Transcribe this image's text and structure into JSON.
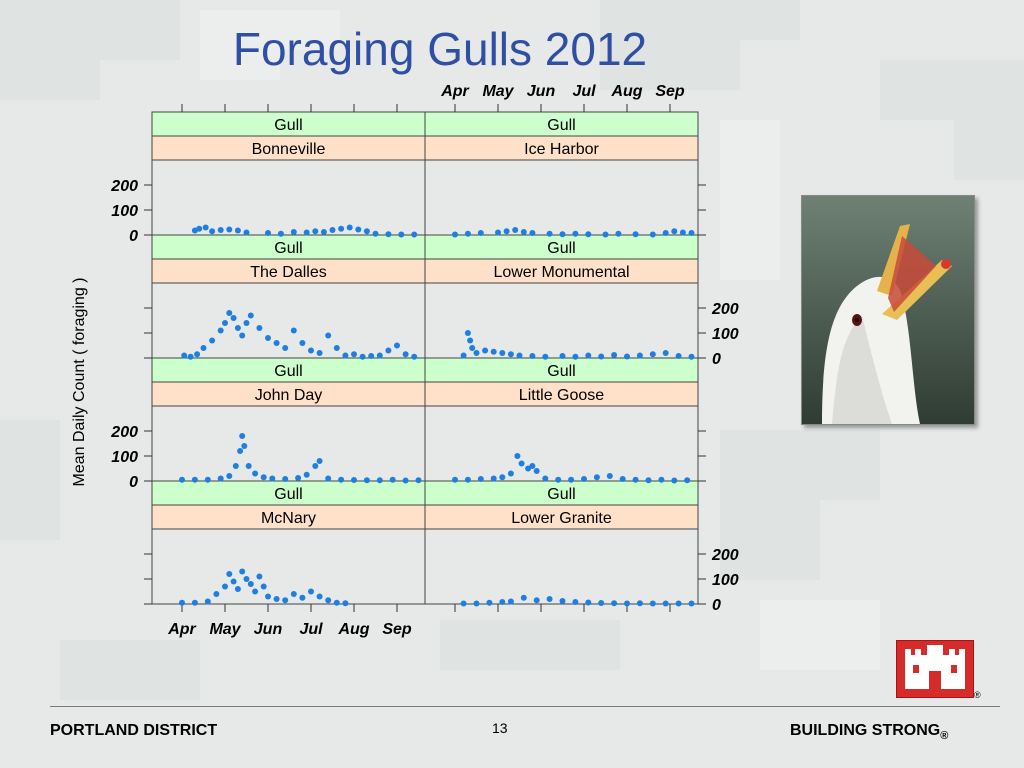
{
  "title": "Foraging Gulls 2012",
  "ylabel": "Mean Daily Count ( foraging )",
  "footer": {
    "left": "PORTLAND DISTRICT",
    "page": "13",
    "right": "BUILDING STRONG",
    "right_mark": "®",
    "logo_mark": "®"
  },
  "colors": {
    "accent": "#2e4fa3",
    "point": "#1e7fe0",
    "strip_top": "#ccffcc",
    "strip_bottom": "#ffe0c8"
  },
  "chart_data": {
    "type": "scatter",
    "x_ticks": [
      "Apr",
      "May",
      "Jun",
      "Jul",
      "Aug",
      "Sep"
    ],
    "y_ticks": [
      0,
      100,
      200
    ],
    "ylim": [
      0,
      300
    ],
    "panels": [
      {
        "species": "Gull",
        "site": "Bonneville",
        "points": [
          [
            0.3,
            18
          ],
          [
            0.4,
            25
          ],
          [
            0.55,
            30
          ],
          [
            0.7,
            15
          ],
          [
            0.9,
            20
          ],
          [
            1.1,
            22
          ],
          [
            1.3,
            18
          ],
          [
            1.5,
            10
          ],
          [
            2.0,
            8
          ],
          [
            2.3,
            5
          ],
          [
            2.6,
            12
          ],
          [
            2.9,
            10
          ],
          [
            3.1,
            15
          ],
          [
            3.3,
            12
          ],
          [
            3.5,
            20
          ],
          [
            3.7,
            25
          ],
          [
            3.9,
            30
          ],
          [
            4.1,
            22
          ],
          [
            4.3,
            15
          ],
          [
            4.5,
            5
          ],
          [
            4.8,
            3
          ],
          [
            5.1,
            2
          ],
          [
            5.4,
            2
          ]
        ]
      },
      {
        "species": "Gull",
        "site": "Ice Harbor",
        "points": [
          [
            0.0,
            2
          ],
          [
            0.3,
            5
          ],
          [
            0.6,
            8
          ],
          [
            1.0,
            10
          ],
          [
            1.2,
            15
          ],
          [
            1.4,
            20
          ],
          [
            1.6,
            12
          ],
          [
            1.8,
            8
          ],
          [
            2.2,
            5
          ],
          [
            2.5,
            3
          ],
          [
            2.8,
            5
          ],
          [
            3.1,
            3
          ],
          [
            3.5,
            2
          ],
          [
            3.8,
            5
          ],
          [
            4.2,
            3
          ],
          [
            4.6,
            2
          ],
          [
            4.9,
            8
          ],
          [
            5.1,
            15
          ],
          [
            5.3,
            10
          ],
          [
            5.5,
            8
          ]
        ]
      },
      {
        "species": "Gull",
        "site": "The Dalles",
        "points": [
          [
            0.05,
            10
          ],
          [
            0.2,
            5
          ],
          [
            0.35,
            15
          ],
          [
            0.5,
            40
          ],
          [
            0.7,
            70
          ],
          [
            0.9,
            110
          ],
          [
            1.0,
            140
          ],
          [
            1.1,
            180
          ],
          [
            1.2,
            160
          ],
          [
            1.3,
            120
          ],
          [
            1.4,
            90
          ],
          [
            1.5,
            140
          ],
          [
            1.6,
            170
          ],
          [
            1.8,
            120
          ],
          [
            2.0,
            80
          ],
          [
            2.2,
            60
          ],
          [
            2.4,
            40
          ],
          [
            2.6,
            110
          ],
          [
            2.8,
            60
          ],
          [
            3.0,
            30
          ],
          [
            3.2,
            20
          ],
          [
            3.4,
            90
          ],
          [
            3.6,
            40
          ],
          [
            3.8,
            10
          ],
          [
            4.0,
            15
          ],
          [
            4.2,
            5
          ],
          [
            4.4,
            8
          ],
          [
            4.6,
            10
          ],
          [
            4.8,
            30
          ],
          [
            5.0,
            50
          ],
          [
            5.2,
            15
          ],
          [
            5.4,
            5
          ]
        ]
      },
      {
        "species": "Gull",
        "site": "Lower Monumental",
        "points": [
          [
            0.2,
            10
          ],
          [
            0.3,
            100
          ],
          [
            0.35,
            70
          ],
          [
            0.4,
            40
          ],
          [
            0.5,
            20
          ],
          [
            0.7,
            30
          ],
          [
            0.9,
            25
          ],
          [
            1.1,
            20
          ],
          [
            1.3,
            15
          ],
          [
            1.5,
            10
          ],
          [
            1.8,
            8
          ],
          [
            2.1,
            5
          ],
          [
            2.5,
            8
          ],
          [
            2.8,
            5
          ],
          [
            3.1,
            10
          ],
          [
            3.4,
            6
          ],
          [
            3.7,
            12
          ],
          [
            4.0,
            6
          ],
          [
            4.3,
            10
          ],
          [
            4.6,
            15
          ],
          [
            4.9,
            20
          ],
          [
            5.2,
            8
          ],
          [
            5.5,
            5
          ]
        ]
      },
      {
        "species": "Gull",
        "site": "John Day",
        "points": [
          [
            0.0,
            5
          ],
          [
            0.3,
            5
          ],
          [
            0.6,
            5
          ],
          [
            0.9,
            10
          ],
          [
            1.1,
            20
          ],
          [
            1.25,
            60
          ],
          [
            1.35,
            120
          ],
          [
            1.4,
            180
          ],
          [
            1.45,
            140
          ],
          [
            1.55,
            60
          ],
          [
            1.7,
            30
          ],
          [
            1.9,
            15
          ],
          [
            2.1,
            10
          ],
          [
            2.4,
            8
          ],
          [
            2.7,
            12
          ],
          [
            2.9,
            25
          ],
          [
            3.1,
            60
          ],
          [
            3.2,
            80
          ],
          [
            3.4,
            10
          ],
          [
            3.7,
            5
          ],
          [
            4.0,
            4
          ],
          [
            4.3,
            3
          ],
          [
            4.6,
            3
          ],
          [
            4.9,
            5
          ],
          [
            5.2,
            2
          ],
          [
            5.5,
            3
          ]
        ]
      },
      {
        "species": "Gull",
        "site": "Little Goose",
        "points": [
          [
            0.0,
            5
          ],
          [
            0.3,
            5
          ],
          [
            0.6,
            8
          ],
          [
            0.9,
            10
          ],
          [
            1.1,
            15
          ],
          [
            1.3,
            30
          ],
          [
            1.45,
            100
          ],
          [
            1.55,
            70
          ],
          [
            1.7,
            50
          ],
          [
            1.8,
            60
          ],
          [
            1.9,
            40
          ],
          [
            2.1,
            10
          ],
          [
            2.4,
            5
          ],
          [
            2.7,
            5
          ],
          [
            3.0,
            8
          ],
          [
            3.3,
            15
          ],
          [
            3.6,
            20
          ],
          [
            3.9,
            8
          ],
          [
            4.2,
            5
          ],
          [
            4.5,
            3
          ],
          [
            4.8,
            5
          ],
          [
            5.1,
            2
          ],
          [
            5.4,
            3
          ]
        ]
      },
      {
        "species": "Gull",
        "site": "McNary",
        "points": [
          [
            0.0,
            5
          ],
          [
            0.3,
            5
          ],
          [
            0.6,
            10
          ],
          [
            0.8,
            40
          ],
          [
            1.0,
            70
          ],
          [
            1.1,
            120
          ],
          [
            1.2,
            90
          ],
          [
            1.3,
            60
          ],
          [
            1.4,
            130
          ],
          [
            1.5,
            100
          ],
          [
            1.6,
            80
          ],
          [
            1.7,
            50
          ],
          [
            1.8,
            110
          ],
          [
            1.9,
            70
          ],
          [
            2.0,
            30
          ],
          [
            2.2,
            20
          ],
          [
            2.4,
            15
          ],
          [
            2.6,
            40
          ],
          [
            2.8,
            25
          ],
          [
            3.0,
            50
          ],
          [
            3.2,
            30
          ],
          [
            3.4,
            15
          ],
          [
            3.6,
            5
          ],
          [
            3.8,
            3
          ]
        ]
      },
      {
        "species": "Gull",
        "site": "Lower Granite",
        "points": [
          [
            0.2,
            2
          ],
          [
            0.5,
            2
          ],
          [
            0.8,
            5
          ],
          [
            1.1,
            8
          ],
          [
            1.3,
            10
          ],
          [
            1.6,
            25
          ],
          [
            1.9,
            15
          ],
          [
            2.2,
            20
          ],
          [
            2.5,
            12
          ],
          [
            2.8,
            8
          ],
          [
            3.1,
            6
          ],
          [
            3.4,
            4
          ],
          [
            3.7,
            3
          ],
          [
            4.0,
            2
          ],
          [
            4.3,
            3
          ],
          [
            4.6,
            2
          ],
          [
            4.9,
            2
          ],
          [
            5.2,
            2
          ],
          [
            5.5,
            2
          ]
        ]
      }
    ]
  }
}
